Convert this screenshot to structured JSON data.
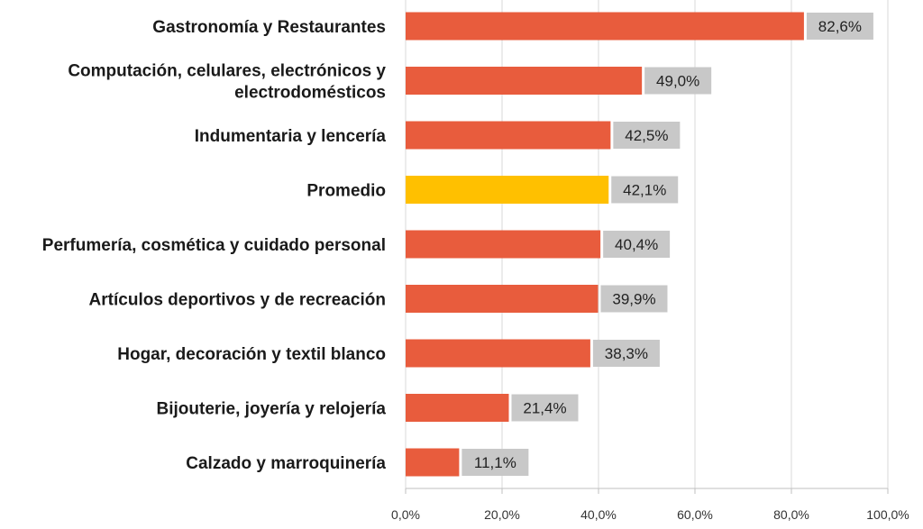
{
  "chart_data": {
    "type": "bar",
    "orientation": "horizontal",
    "categories": [
      [
        "Gastronomía y Restaurantes"
      ],
      [
        "Computación, celulares, electrónicos y",
        "electrodomésticos"
      ],
      [
        "Indumentaria y lencería"
      ],
      [
        "Promedio"
      ],
      [
        "Perfumería, cosmética y cuidado personal"
      ],
      [
        "Artículos deportivos y de recreación"
      ],
      [
        "Hogar, decoración y textil blanco"
      ],
      [
        "Bijouterie, joyería y relojería"
      ],
      [
        "Calzado y marroquinería"
      ]
    ],
    "values": [
      82.6,
      49.0,
      42.5,
      42.1,
      40.4,
      39.9,
      38.3,
      21.4,
      11.1
    ],
    "data_labels": [
      "82,6%",
      "49,0%",
      "42,5%",
      "42,1%",
      "40,4%",
      "39,9%",
      "38,3%",
      "21,4%",
      "11,1%"
    ],
    "xlim": [
      0,
      100
    ],
    "x_ticks": [
      0,
      20,
      40,
      60,
      80,
      100
    ],
    "x_tick_labels": [
      "0,0%",
      "20,0%",
      "40,0%",
      "60,0%",
      "80,0%",
      "100,0%"
    ],
    "highlight_category_index": 3,
    "grid": "vertical",
    "colors": {
      "bar": "#e85c3d",
      "highlight": "#ffc000",
      "label_box": "#c8c8c8",
      "grid": "#d9d9d9"
    }
  }
}
